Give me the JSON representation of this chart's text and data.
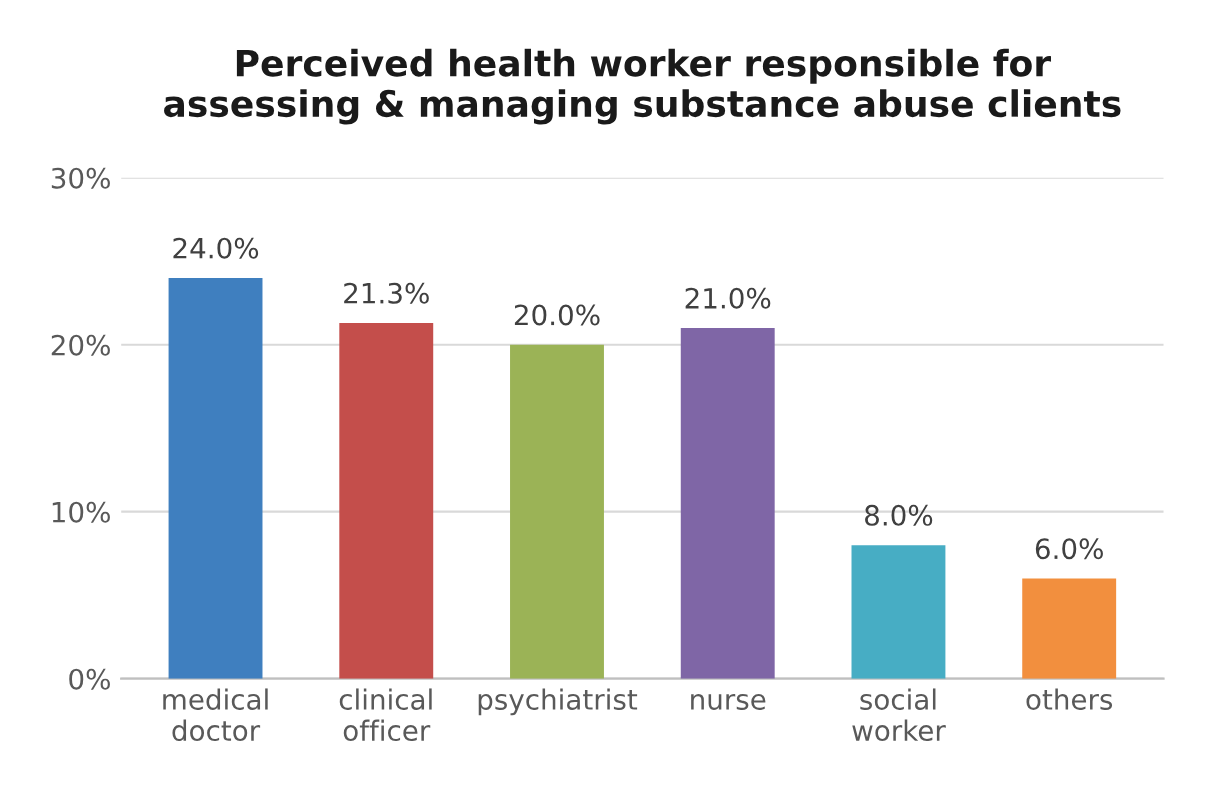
{
  "chart_data": {
    "type": "bar",
    "title": "Perceived health worker responsible for\nassessing & managing substance abuse clients",
    "categories": [
      "medical\ndoctor",
      "clinical\nofficer",
      "psychiatrist",
      "nurse",
      "social\nworker",
      "others"
    ],
    "values": [
      24.0,
      21.3,
      20.0,
      21.0,
      8.0,
      6.0
    ],
    "colors": [
      "#3f7fbf",
      "#c44e4b",
      "#9bb356",
      "#7f66a6",
      "#47adc4",
      "#f28f3e"
    ],
    "value_labels": [
      "24.0%",
      "21.3%",
      "20.0%",
      "21.0%",
      "8.0%",
      "6.0%"
    ],
    "ylim": [
      0,
      30
    ],
    "yticks": [
      {
        "value": 0,
        "label": "0%"
      },
      {
        "value": 10,
        "label": "10%"
      },
      {
        "value": 20,
        "label": "20%"
      },
      {
        "value": 30,
        "label": "30%"
      }
    ],
    "grid": "y",
    "legend": false
  }
}
